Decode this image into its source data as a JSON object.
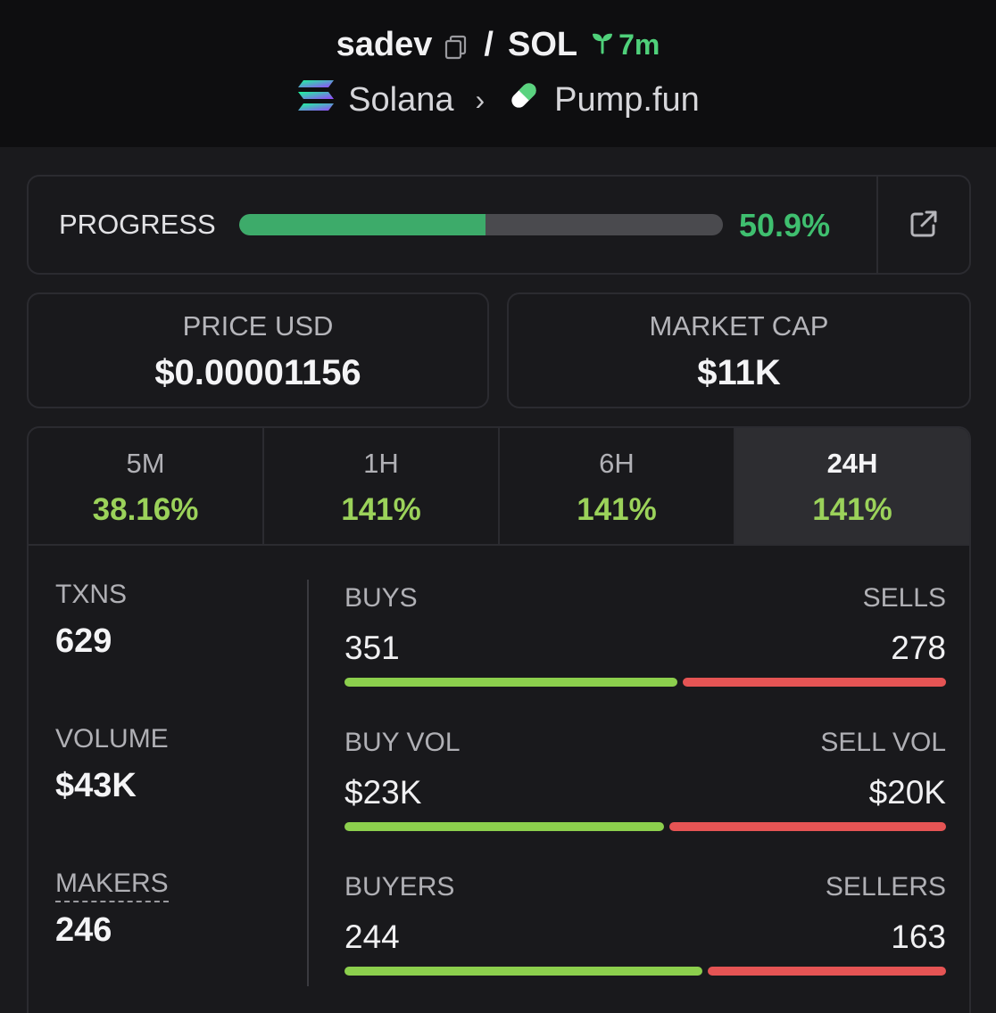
{
  "header": {
    "token": "sadev",
    "separator": "/",
    "pair": "SOL",
    "age": "7m",
    "chain": "Solana",
    "dex": "Pump.fun"
  },
  "progress": {
    "label": "PROGRESS",
    "value": "50.9%",
    "fraction": 0.509
  },
  "price": {
    "label": "PRICE USD",
    "value": "$0.00001156"
  },
  "market_cap": {
    "label": "MARKET CAP",
    "value": "$11K"
  },
  "timeframes": [
    {
      "label": "5M",
      "change": "38.16%"
    },
    {
      "label": "1H",
      "change": "141%"
    },
    {
      "label": "6H",
      "change": "141%"
    },
    {
      "label": "24H",
      "change": "141%",
      "active": true
    }
  ],
  "stats": {
    "txns": {
      "label": "TXNS",
      "value": "629"
    },
    "volume": {
      "label": "VOLUME",
      "value": "$43K"
    },
    "makers": {
      "label": "MAKERS",
      "value": "246"
    },
    "buys_sells": {
      "left_label": "BUYS",
      "left_value": "351",
      "right_label": "SELLS",
      "right_value": "278",
      "buy_fraction": 0.558
    },
    "buy_sell_vol": {
      "left_label": "BUY VOL",
      "left_value": "$23K",
      "right_label": "SELL VOL",
      "right_value": "$20K",
      "buy_fraction": 0.535
    },
    "buyers_sellers": {
      "left_label": "BUYERS",
      "left_value": "244",
      "right_label": "SELLERS",
      "right_value": "163",
      "buy_fraction": 0.6
    }
  },
  "colors": {
    "accent_green": "#3fbf6f",
    "change_green": "#9bd25a",
    "buy_bar": "#8ccf4d",
    "sell_bar": "#e55454"
  }
}
